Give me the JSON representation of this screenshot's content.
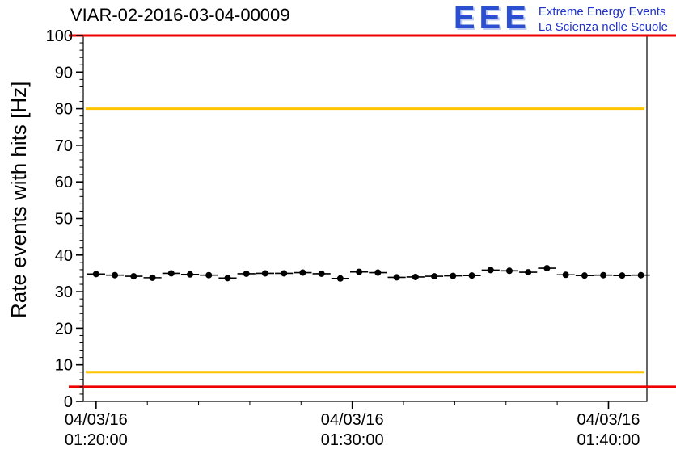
{
  "logo": {
    "letters": "EEE",
    "line1": "Extreme Energy Events",
    "line2": "La Scienza nelle Scuole",
    "letters_color": "#2b4fd0",
    "text_color": "#2233cc"
  },
  "chart_data": {
    "type": "scatter",
    "title": "VIAR-02-2016-03-04-00009",
    "xlabel": "",
    "ylabel": "Rate events with hits [Hz]",
    "ylim": [
      0,
      100
    ],
    "y_major_step": 10,
    "y_minor_step": 2,
    "grid": false,
    "x_range_seconds": [
      0,
      1320
    ],
    "x_minor_step": 120,
    "x_minor_anchor": 30,
    "x_ticks": [
      {
        "t": 30,
        "date": "04/03/16",
        "time": "01:20:00"
      },
      {
        "t": 630,
        "date": "04/03/16",
        "time": "01:30:00"
      },
      {
        "t": 1230,
        "date": "04/03/16",
        "time": "01:40:00"
      }
    ],
    "thresholds": [
      {
        "name": "red-upper",
        "y": 100,
        "color": "#ee0000",
        "extend": true
      },
      {
        "name": "yellow-upper",
        "y": 80,
        "color": "#ffc400",
        "extend": false
      },
      {
        "name": "yellow-lower",
        "y": 8,
        "color": "#ffc400",
        "extend": false
      },
      {
        "name": "red-lower",
        "y": 4,
        "color": "#ee0000",
        "extend": true
      }
    ],
    "marker_color": "#000000",
    "bin_half_width_s": 21,
    "y_err": 0.6,
    "points": [
      {
        "t": 30,
        "y": 34.8
      },
      {
        "t": 74,
        "y": 34.5
      },
      {
        "t": 118,
        "y": 34.2
      },
      {
        "t": 162,
        "y": 33.8
      },
      {
        "t": 206,
        "y": 35.0
      },
      {
        "t": 250,
        "y": 34.7
      },
      {
        "t": 294,
        "y": 34.5
      },
      {
        "t": 338,
        "y": 33.7
      },
      {
        "t": 382,
        "y": 34.9
      },
      {
        "t": 426,
        "y": 35.0
      },
      {
        "t": 470,
        "y": 35.0
      },
      {
        "t": 514,
        "y": 35.2
      },
      {
        "t": 558,
        "y": 34.9
      },
      {
        "t": 602,
        "y": 33.6
      },
      {
        "t": 646,
        "y": 35.4
      },
      {
        "t": 690,
        "y": 35.2
      },
      {
        "t": 734,
        "y": 33.9
      },
      {
        "t": 778,
        "y": 34.0
      },
      {
        "t": 822,
        "y": 34.2
      },
      {
        "t": 866,
        "y": 34.3
      },
      {
        "t": 910,
        "y": 34.4
      },
      {
        "t": 954,
        "y": 35.9
      },
      {
        "t": 998,
        "y": 35.7
      },
      {
        "t": 1042,
        "y": 35.3
      },
      {
        "t": 1086,
        "y": 36.4
      },
      {
        "t": 1130,
        "y": 34.6
      },
      {
        "t": 1174,
        "y": 34.4
      },
      {
        "t": 1218,
        "y": 34.5
      },
      {
        "t": 1262,
        "y": 34.4
      },
      {
        "t": 1306,
        "y": 34.5
      }
    ]
  }
}
